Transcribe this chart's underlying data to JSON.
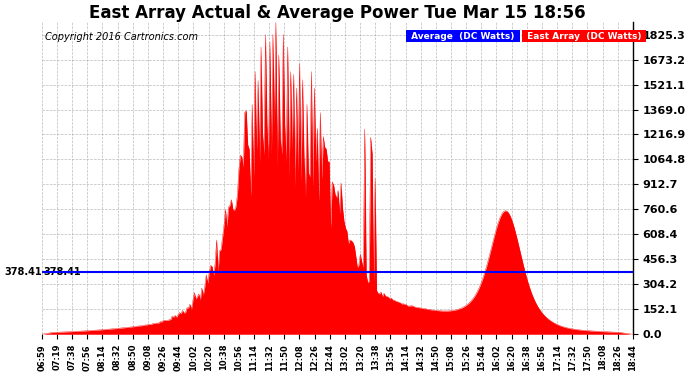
{
  "title": "East Array Actual & Average Power Tue Mar 15 18:56",
  "copyright": "Copyright 2016 Cartronics.com",
  "yticks": [
    0.0,
    152.1,
    304.2,
    456.3,
    608.4,
    760.6,
    912.7,
    1064.8,
    1216.9,
    1369.0,
    1521.1,
    1673.2,
    1825.3
  ],
  "average_value": 378.41,
  "ymax": 1900,
  "ymin": 0,
  "bg_color": "#ffffff",
  "plot_bg_color": "#ffffff",
  "grid_color": "#aaaaaa",
  "fill_color": "#ff0000",
  "avg_line_color": "#0000ff",
  "legend_avg_bg": "#0000ff",
  "legend_east_bg": "#ff0000",
  "legend_avg_text": "Average  (DC Watts)",
  "legend_east_text": "East Array  (DC Watts)",
  "title_fontsize": 12,
  "copyright_fontsize": 7,
  "xtick_fontsize": 6,
  "ytick_fontsize": 8,
  "x_labels": [
    "06:59",
    "07:19",
    "07:38",
    "07:56",
    "08:14",
    "08:32",
    "08:50",
    "09:08",
    "09:26",
    "09:44",
    "10:02",
    "10:20",
    "10:38",
    "10:56",
    "11:14",
    "11:32",
    "11:50",
    "12:08",
    "12:26",
    "12:44",
    "13:02",
    "13:20",
    "13:38",
    "13:56",
    "14:14",
    "14:32",
    "14:50",
    "15:08",
    "15:26",
    "15:44",
    "16:02",
    "16:20",
    "16:38",
    "16:56",
    "17:14",
    "17:32",
    "17:50",
    "18:08",
    "18:26",
    "18:44"
  ]
}
